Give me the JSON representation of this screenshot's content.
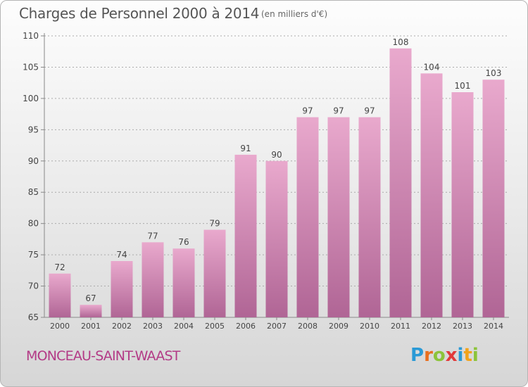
{
  "header": {
    "title": "Charges de Personnel 2000 à 2014",
    "subtitle": "(en milliers d'€)"
  },
  "footer": {
    "commune": "MONCEAU-SAINT-WAAST",
    "logo_letters": [
      "P",
      "r",
      "o",
      "x",
      "i",
      "t",
      "i"
    ],
    "logo_colors": [
      "#2a9ad6",
      "#e86f1f",
      "#8cc43a",
      "#e23a3a",
      "#2a9ad6",
      "#f2a31b",
      "#8cc43a"
    ]
  },
  "colors": {
    "bar": "#d98cb8",
    "bar_dark": "#b06595",
    "bar_light": "#e9a9cd",
    "axis": "#888888",
    "grid": "#aaaaaa",
    "label": "#444444",
    "commune": "#b33a86"
  },
  "chart_data": {
    "type": "bar",
    "title": "Charges de Personnel 2000 à 2014",
    "subtitle": "(en milliers d'€)",
    "categories": [
      "2000",
      "2001",
      "2002",
      "2003",
      "2004",
      "2005",
      "2006",
      "2007",
      "2008",
      "2009",
      "2010",
      "2011",
      "2012",
      "2013",
      "2014"
    ],
    "values": [
      72,
      67,
      74,
      77,
      76,
      79,
      91,
      90,
      97,
      97,
      97,
      108,
      104,
      101,
      103
    ],
    "ylim": [
      65,
      110
    ],
    "yticks": [
      65,
      70,
      75,
      80,
      85,
      90,
      95,
      100,
      105,
      110
    ],
    "grid": "horizontal dashed",
    "legend": "none"
  }
}
